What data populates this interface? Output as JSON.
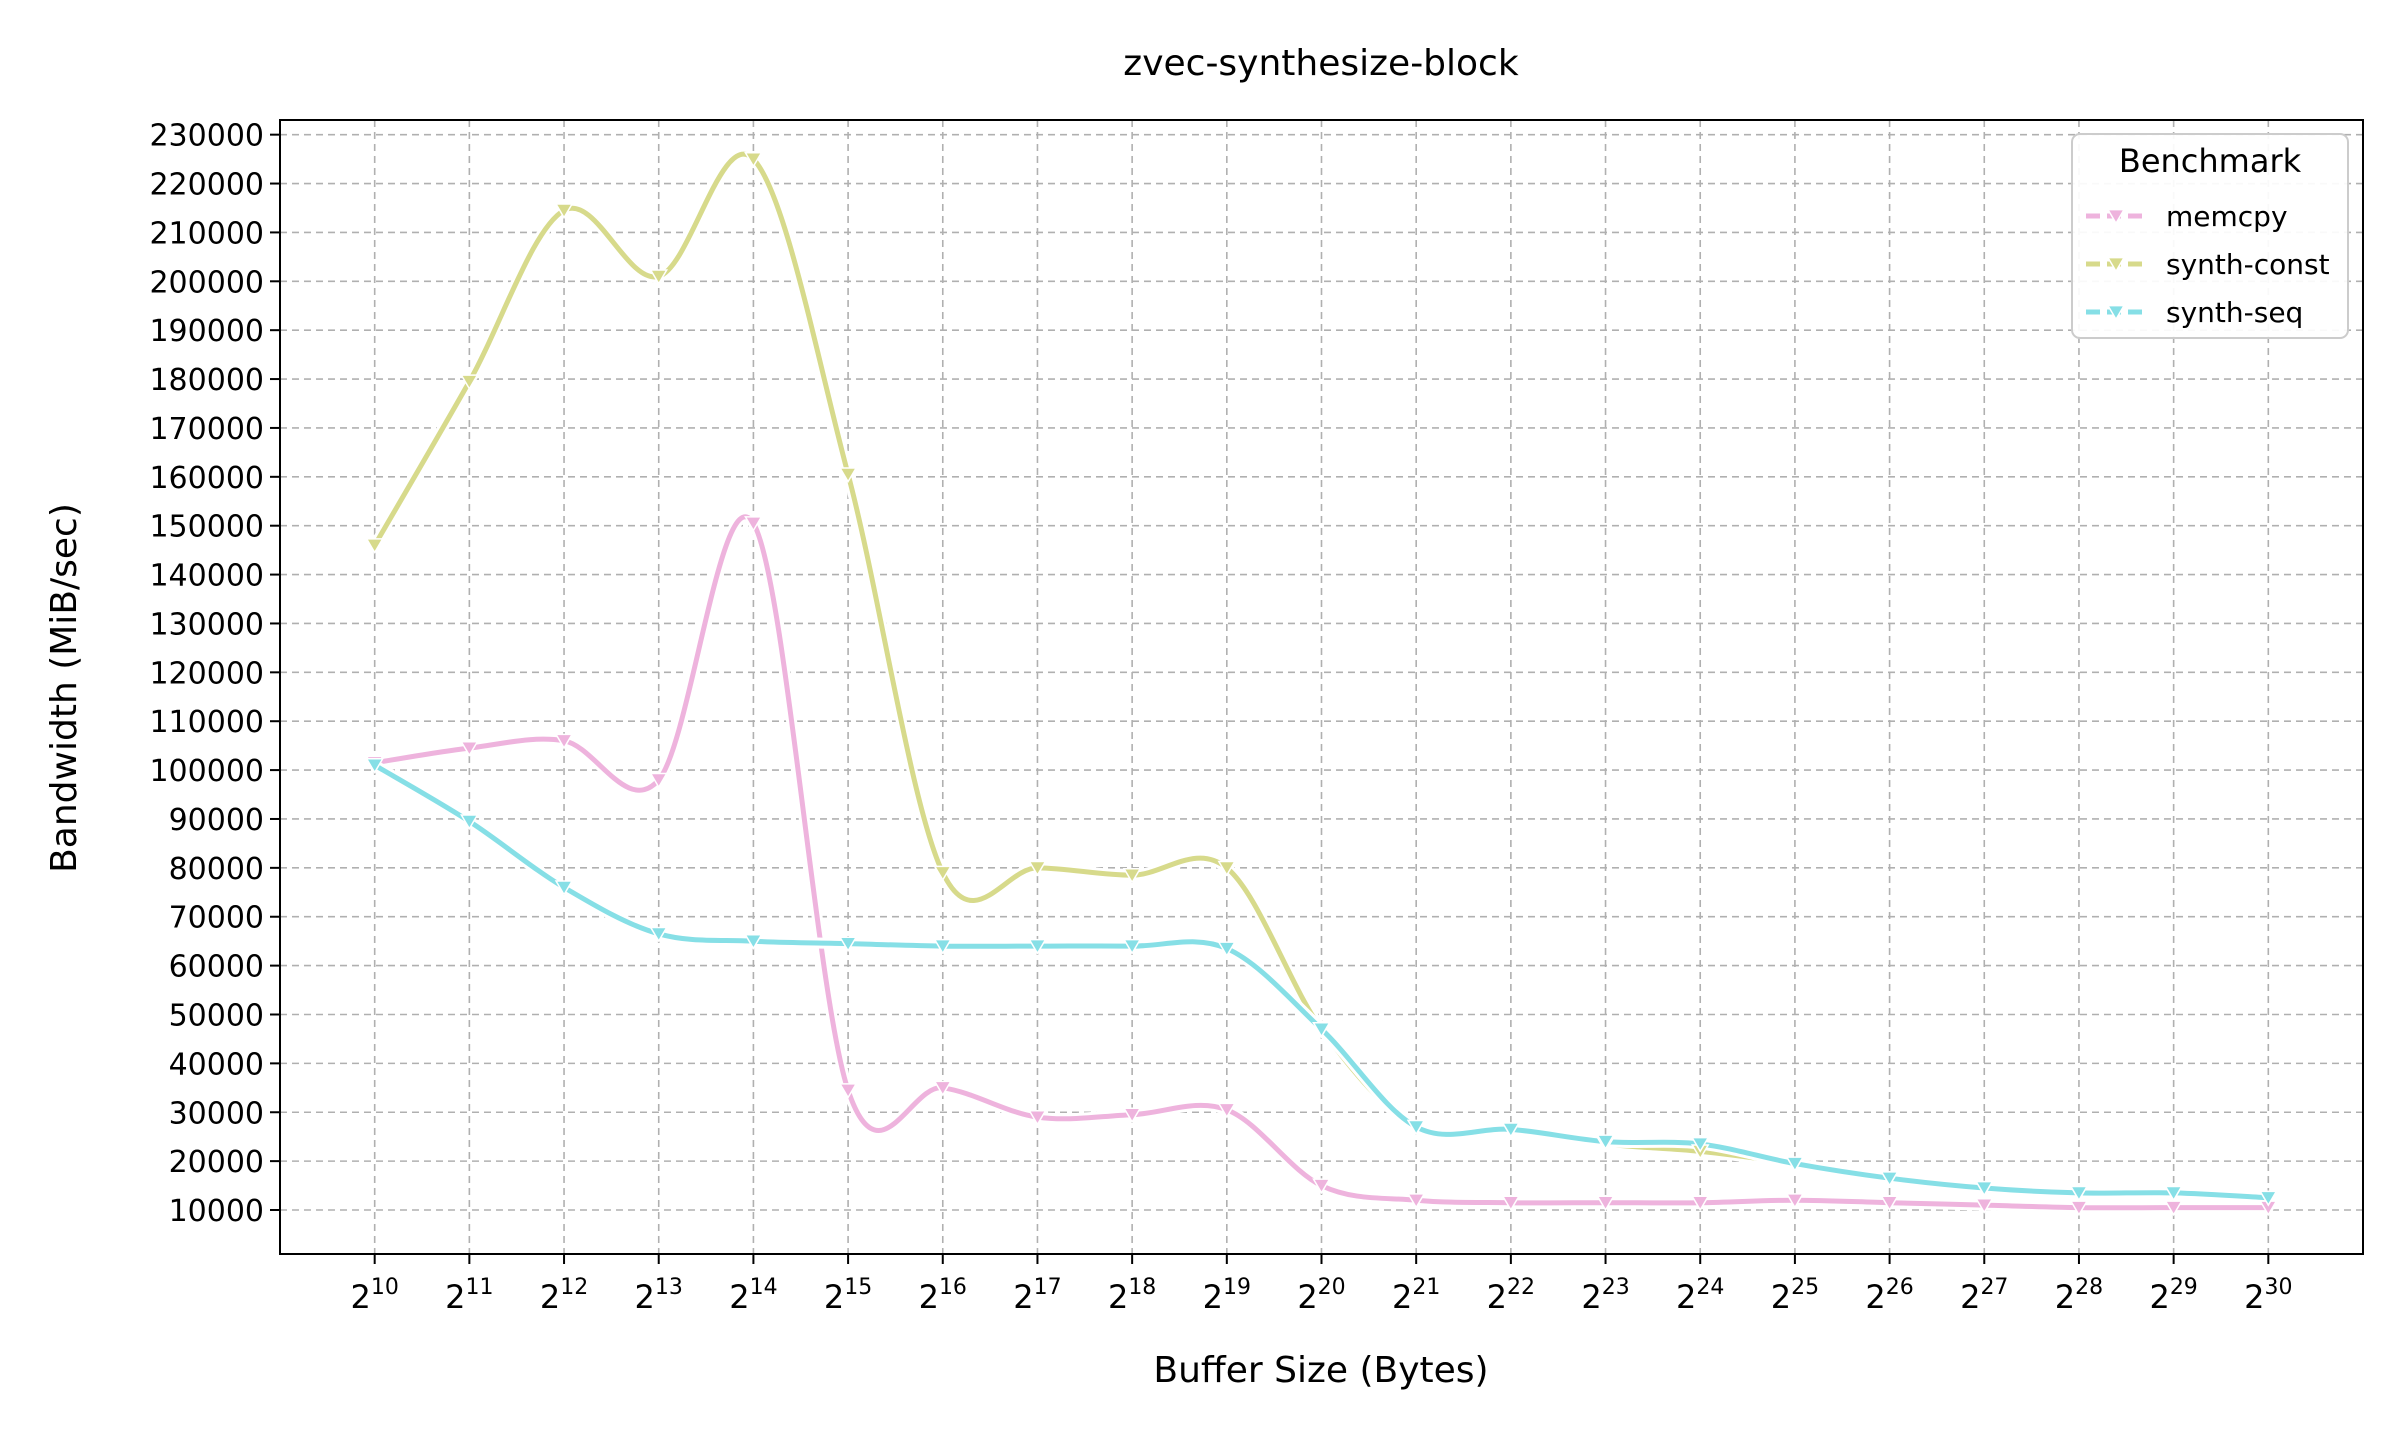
{
  "chart_data": {
    "type": "line",
    "title": "zvec-synthesize-block",
    "xlabel": "Buffer Size (Bytes)",
    "ylabel": "Bandwidth (MiB/sec)",
    "x_tick_base": "2",
    "x": [
      10,
      11,
      12,
      13,
      14,
      15,
      16,
      17,
      18,
      19,
      20,
      21,
      22,
      23,
      24,
      25,
      26,
      27,
      28,
      29,
      30
    ],
    "x_ticks": [
      "10",
      "11",
      "12",
      "13",
      "14",
      "15",
      "16",
      "17",
      "18",
      "19",
      "20",
      "21",
      "22",
      "23",
      "24",
      "25",
      "26",
      "27",
      "28",
      "29",
      "30"
    ],
    "y_ticks": [
      10000,
      20000,
      30000,
      40000,
      50000,
      60000,
      70000,
      80000,
      90000,
      100000,
      110000,
      120000,
      130000,
      140000,
      150000,
      160000,
      170000,
      180000,
      190000,
      200000,
      210000,
      220000,
      230000
    ],
    "y_tick_labels": [
      "10000",
      "20000",
      "30000",
      "40000",
      "50000",
      "60000",
      "70000",
      "80000",
      "90000",
      "100000",
      "110000",
      "120000",
      "130000",
      "140000",
      "150000",
      "160000",
      "170000",
      "180000",
      "190000",
      "200000",
      "210000",
      "220000",
      "230000"
    ],
    "xlim": [
      9,
      31
    ],
    "ylim": [
      1000,
      233000
    ],
    "grid": true,
    "legend": {
      "title": "Benchmark",
      "placement": "top-right"
    },
    "series": [
      {
        "name": "memcpy",
        "color": "#eeb3dd",
        "marker": "triangle-down",
        "values": [
          101500,
          104500,
          106000,
          98000,
          150500,
          34500,
          35000,
          29000,
          29500,
          30500,
          15000,
          12000,
          11500,
          11500,
          11500,
          12000,
          11500,
          11000,
          10500,
          10500,
          10500
        ]
      },
      {
        "name": "synth-const",
        "color": "#d7da8b",
        "marker": "triangle-down",
        "values": [
          146000,
          179500,
          214500,
          201000,
          225000,
          160500,
          79000,
          80000,
          78500,
          80000,
          47000,
          27000,
          26500,
          23500,
          22000,
          19500,
          16500,
          14500,
          13500,
          13500,
          12500
        ]
      },
      {
        "name": "synth-seq",
        "color": "#86dfe6",
        "marker": "triangle-down",
        "values": [
          101000,
          89500,
          76000,
          66500,
          65000,
          64500,
          64000,
          64000,
          64000,
          63500,
          47000,
          27000,
          26500,
          24000,
          23500,
          19500,
          16500,
          14500,
          13500,
          13500,
          12500
        ]
      }
    ]
  }
}
